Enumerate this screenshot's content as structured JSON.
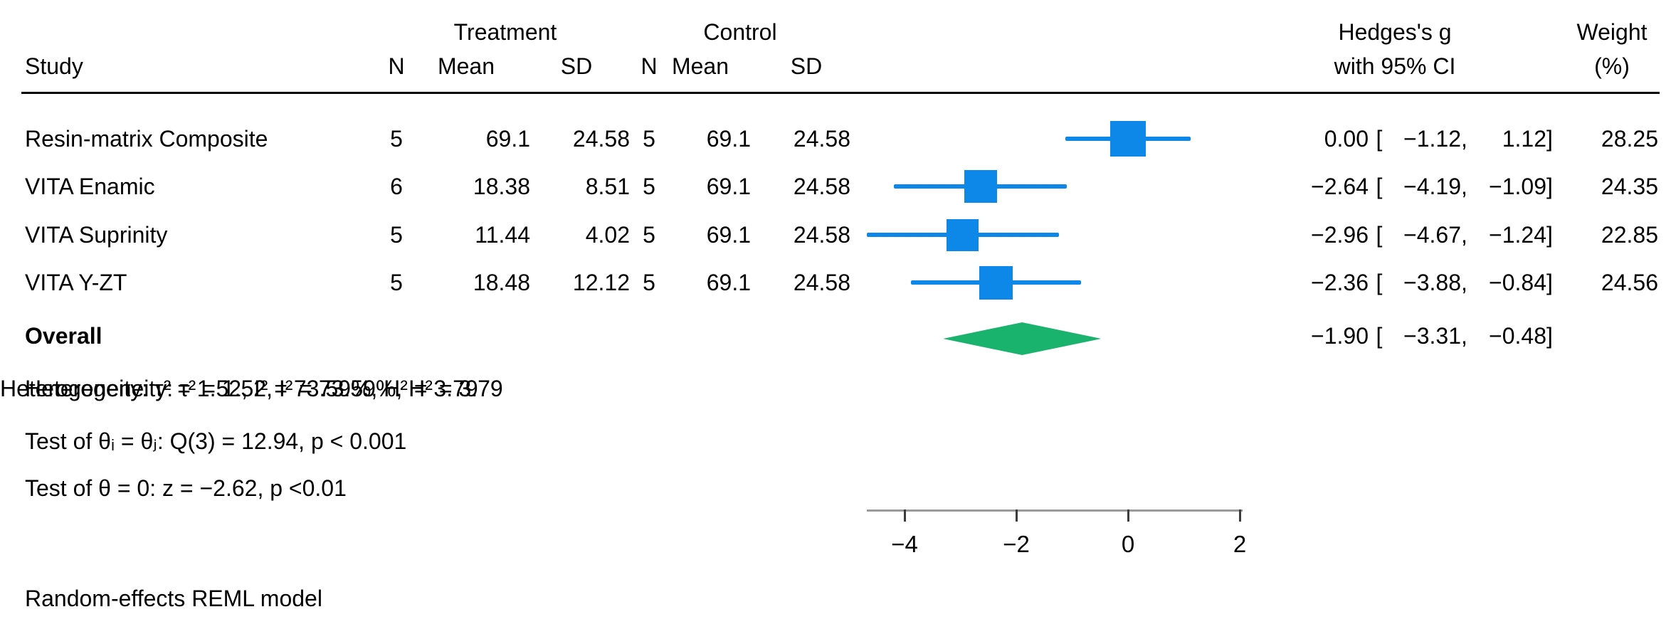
{
  "header": {
    "col_study": "Study",
    "group_treatment": "Treatment",
    "group_control": "Control",
    "col_n": "N",
    "col_mean": "Mean",
    "col_sd": "SD",
    "col_es_line1": "Hedges's g",
    "col_es_line2": "with 95% CI",
    "col_weight_line1": "Weight",
    "col_weight_line2": "(%)"
  },
  "format": {
    "open": "[",
    "comma": ",",
    "close": "]"
  },
  "rows": [
    {
      "study": "Resin-matrix Composite",
      "n1": "5",
      "mean1": "69.1",
      "sd1": "24.58",
      "n2": "5",
      "mean2": "69.1",
      "sd2": "24.58",
      "est": "0.00",
      "lo": "−1.12",
      "hi": "1.12",
      "weight": "28.25"
    },
    {
      "study": "VITA Enamic",
      "n1": "6",
      "mean1": "18.38",
      "sd1": "8.51",
      "n2": "5",
      "mean2": "69.1",
      "sd2": "24.58",
      "est": "−2.64",
      "lo": "−4.19",
      "hi": "−1.09",
      "weight": "24.35"
    },
    {
      "study": "VITA Suprinity",
      "n1": "5",
      "mean1": "11.44",
      "sd1": "4.02",
      "n2": "5",
      "mean2": "69.1",
      "sd2": "24.58",
      "est": "−2.96",
      "lo": "−4.67",
      "hi": "−1.24",
      "weight": "22.85"
    },
    {
      "study": "VITA Y-ZT",
      "n1": "5",
      "mean1": "18.48",
      "sd1": "12.12",
      "n2": "5",
      "mean2": "69.1",
      "sd2": "24.58",
      "est": "−2.36",
      "lo": "−3.88",
      "hi": "−0.84",
      "weight": "24.56"
    }
  ],
  "overall": {
    "label": "Overall",
    "est": "−1.90",
    "lo": "−3.31",
    "hi": "−0.48"
  },
  "stats": {
    "heterogeneity": "Heterogeneity: τ² = 1.52, I² = 73.59%, H² = 3.79",
    "test_group": "Test of θᵢ = θⱼ: Q(3) = 12.94, p < 0.001",
    "test_overall": "Test of θ = 0: z = −2.62, p <0.01"
  },
  "footer": {
    "model": "Random-effects REML model"
  },
  "axis": {
    "tick_labels": [
      "−4",
      "−2",
      "0",
      "2"
    ]
  },
  "colors": {
    "marker_blue": "#0d87e8",
    "diamond_green": "#1ab36e",
    "axis_gray": "#9a9a9a",
    "tick_dark": "#3c3c3c",
    "rule_black": "#000000"
  },
  "chart_data": {
    "type": "scatter",
    "subtype": "forest-plot",
    "effect_measure": "Hedges's g with 95% CI",
    "model": "Random-effects REML model",
    "x_ticks": [
      -4,
      -2,
      0,
      2
    ],
    "xlim": [
      -4.67,
      2.05
    ],
    "studies": [
      {
        "name": "Resin-matrix Composite",
        "treatment_n": 5,
        "treatment_mean": 69.1,
        "treatment_sd": 24.58,
        "control_n": 5,
        "control_mean": 69.1,
        "control_sd": 24.58,
        "g": 0.0,
        "ci_low": -1.12,
        "ci_high": 1.12,
        "weight_pct": 28.25
      },
      {
        "name": "VITA Enamic",
        "treatment_n": 6,
        "treatment_mean": 18.38,
        "treatment_sd": 8.51,
        "control_n": 5,
        "control_mean": 69.1,
        "control_sd": 24.58,
        "g": -2.64,
        "ci_low": -4.19,
        "ci_high": -1.09,
        "weight_pct": 24.35
      },
      {
        "name": "VITA Suprinity",
        "treatment_n": 5,
        "treatment_mean": 11.44,
        "treatment_sd": 4.02,
        "control_n": 5,
        "control_mean": 69.1,
        "control_sd": 24.58,
        "g": -2.96,
        "ci_low": -4.67,
        "ci_high": -1.24,
        "weight_pct": 22.85
      },
      {
        "name": "VITA Y-ZT",
        "treatment_n": 5,
        "treatment_mean": 18.48,
        "treatment_sd": 12.12,
        "control_n": 5,
        "control_mean": 69.1,
        "control_sd": 24.58,
        "g": -2.36,
        "ci_low": -3.88,
        "ci_high": -0.84,
        "weight_pct": 24.56
      }
    ],
    "overall": {
      "g": -1.9,
      "ci_low": -3.31,
      "ci_high": -0.48
    },
    "heterogeneity": {
      "tau2": 1.52,
      "I2_pct": 73.59,
      "H2": 3.79
    },
    "test_of_group_differences": {
      "df": 3,
      "Q": 12.94,
      "p": "< 0.001"
    },
    "test_of_overall_effect": {
      "z": -2.62,
      "p": "<0.01"
    }
  }
}
